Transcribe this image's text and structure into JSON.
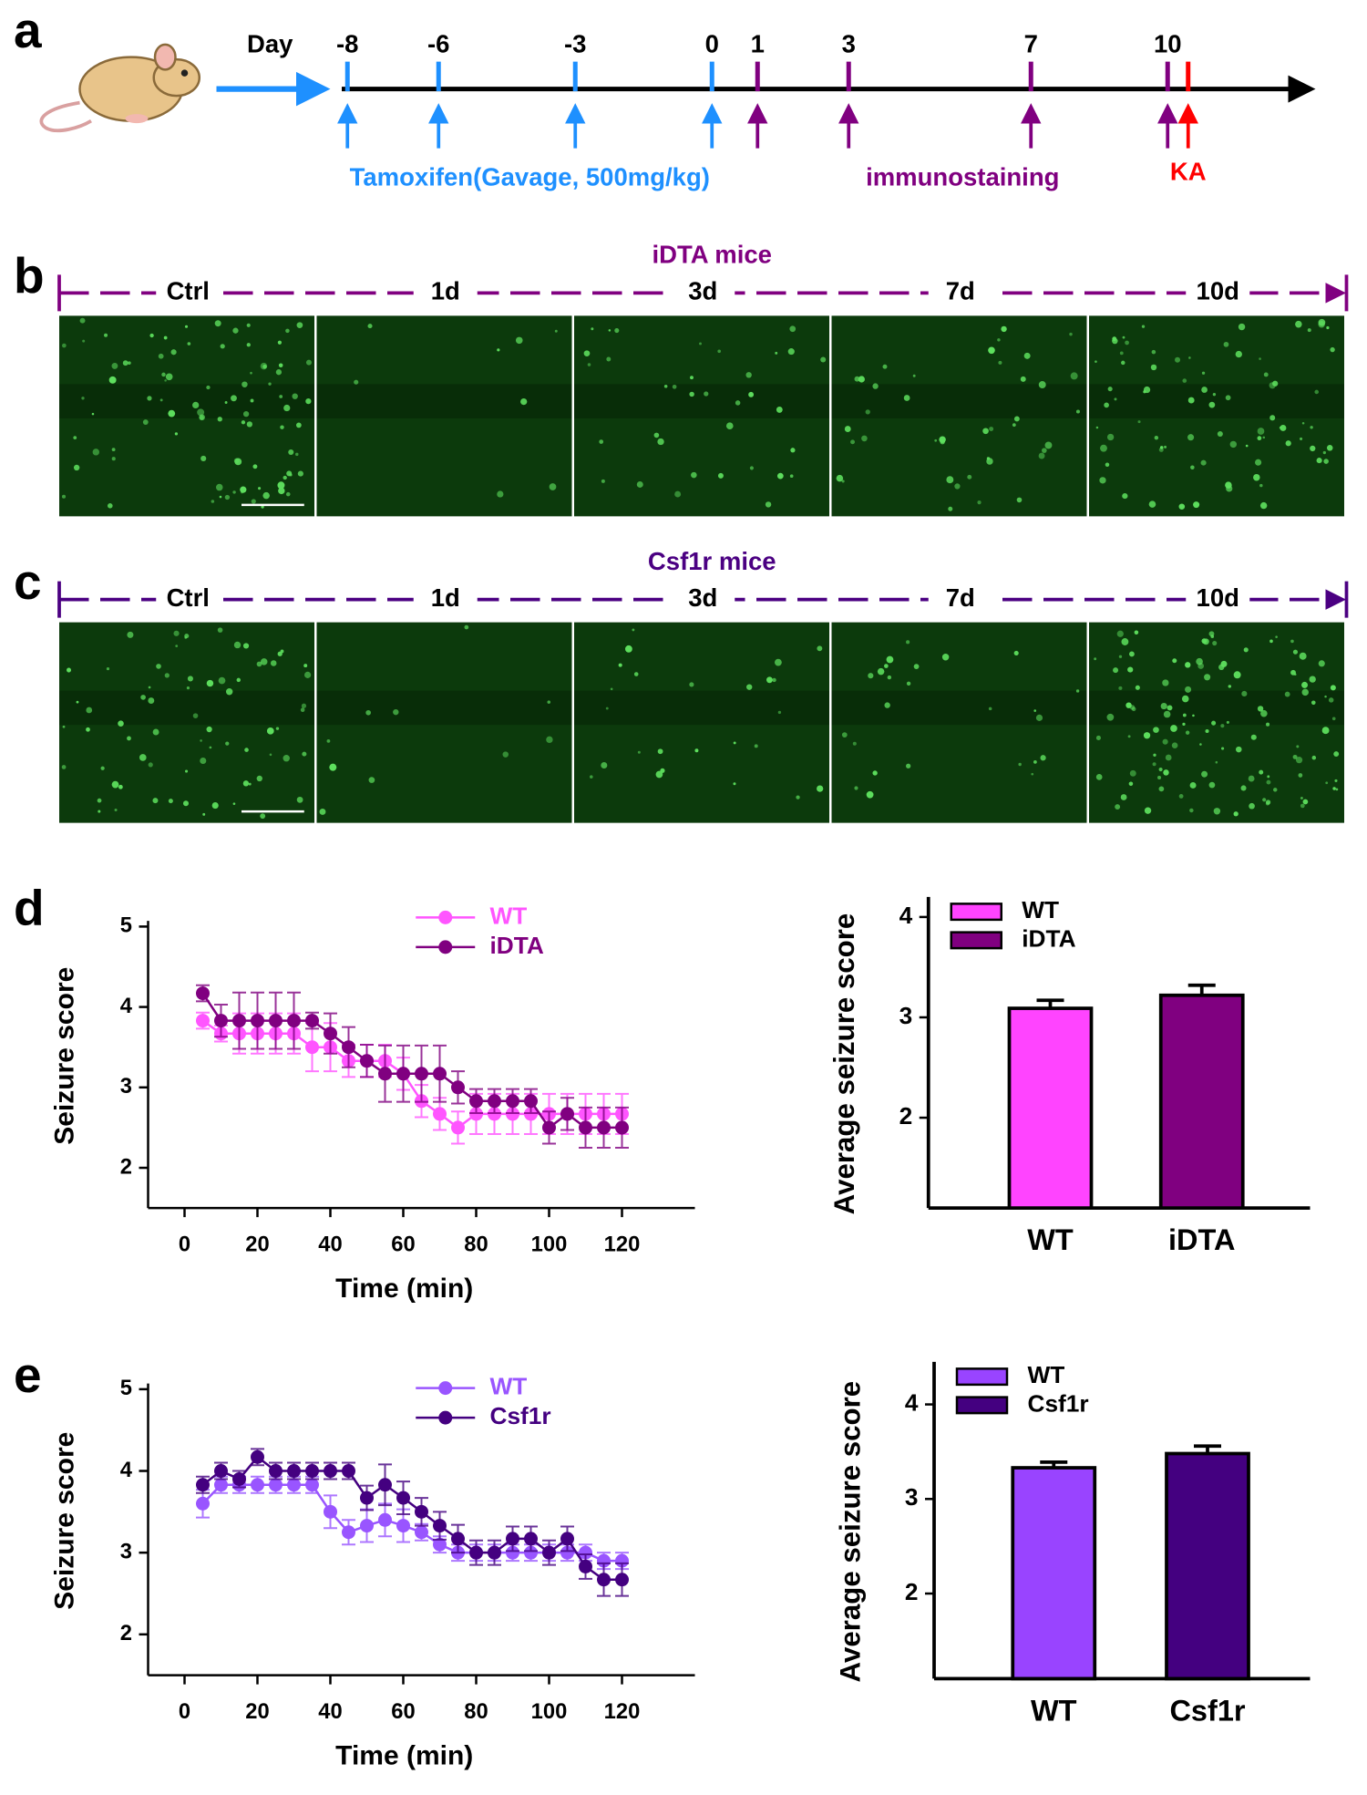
{
  "panel_labels": [
    "a",
    "b",
    "c",
    "d",
    "e"
  ],
  "timeline": {
    "day_label": "Day",
    "groups": [
      {
        "label": "Tamoxifen(Gavage, 500mg/kg)",
        "color": "#1e90ff",
        "days": [
          -8,
          -6,
          -3,
          0
        ]
      },
      {
        "label": "immunostaining",
        "color": "#800080",
        "days": [
          1,
          3,
          7,
          10
        ]
      }
    ],
    "event": {
      "label": "KA",
      "color": "#ff0000"
    }
  },
  "images": [
    {
      "title": "iDTA mice",
      "color": "#800080",
      "timepoints": [
        "Ctrl",
        "1d",
        "3d",
        "7d",
        "10d"
      ]
    },
    {
      "title": "Csf1r mice",
      "color": "#4b0082",
      "timepoints": [
        "Ctrl",
        "1d",
        "3d",
        "7d",
        "10d"
      ]
    }
  ],
  "chart_data": [
    {
      "type": "line",
      "xlabel": "Time (min)",
      "ylabel": "Seizure score",
      "x": [
        5,
        10,
        15,
        20,
        25,
        30,
        35,
        40,
        45,
        50,
        55,
        60,
        65,
        70,
        75,
        80,
        85,
        90,
        95,
        100,
        105,
        110,
        115,
        120
      ],
      "xlim": [
        -10,
        140
      ],
      "xticks": [
        0,
        20,
        40,
        60,
        80,
        100,
        120
      ],
      "ylim": [
        1.5,
        5
      ],
      "yticks": [
        2,
        3,
        4,
        5
      ],
      "series": [
        {
          "name": "WT",
          "color": "#ff55ff",
          "values": [
            3.83,
            3.67,
            3.67,
            3.67,
            3.67,
            3.67,
            3.5,
            3.5,
            3.33,
            3.33,
            3.33,
            3.17,
            2.83,
            2.67,
            2.5,
            2.67,
            2.67,
            2.67,
            2.67,
            2.67,
            2.67,
            2.67,
            2.67,
            2.67
          ],
          "errors": [
            0.1,
            0.1,
            0.25,
            0.25,
            0.25,
            0.25,
            0.3,
            0.3,
            0.2,
            0.2,
            0.2,
            0.2,
            0.2,
            0.2,
            0.2,
            0.25,
            0.25,
            0.25,
            0.25,
            0.25,
            0.25,
            0.25,
            0.25,
            0.25
          ]
        },
        {
          "name": "iDTA",
          "color": "#800080",
          "values": [
            4.17,
            3.83,
            3.83,
            3.83,
            3.83,
            3.83,
            3.83,
            3.67,
            3.5,
            3.33,
            3.17,
            3.17,
            3.17,
            3.17,
            3.0,
            2.83,
            2.83,
            2.83,
            2.83,
            2.5,
            2.67,
            2.5,
            2.5,
            2.5
          ],
          "errors": [
            0.1,
            0.2,
            0.35,
            0.35,
            0.35,
            0.35,
            0.1,
            0.25,
            0.25,
            0.2,
            0.35,
            0.35,
            0.35,
            0.35,
            0.2,
            0.15,
            0.15,
            0.15,
            0.15,
            0.2,
            0.2,
            0.25,
            0.25,
            0.25
          ]
        }
      ]
    },
    {
      "type": "bar",
      "ylabel": "Average seizure score",
      "categories": [
        "WT",
        "iDTA"
      ],
      "values": [
        3.09,
        3.22
      ],
      "errors": [
        0.08,
        0.1
      ],
      "colors": [
        "#ff44ff",
        "#800080"
      ],
      "ylim": [
        1.1,
        4.2
      ],
      "yticks": [
        2,
        3,
        4
      ]
    },
    {
      "type": "line",
      "xlabel": "Time (min)",
      "ylabel": "Seizure score",
      "x": [
        5,
        10,
        15,
        20,
        25,
        30,
        35,
        40,
        45,
        50,
        55,
        60,
        65,
        70,
        75,
        80,
        85,
        90,
        95,
        100,
        105,
        110,
        115,
        120
      ],
      "xlim": [
        -10,
        140
      ],
      "xticks": [
        0,
        20,
        40,
        60,
        80,
        100,
        120
      ],
      "ylim": [
        1.5,
        5
      ],
      "yticks": [
        2,
        3,
        4,
        5
      ],
      "series": [
        {
          "name": "WT",
          "color": "#9955ff",
          "values": [
            3.6,
            3.83,
            3.83,
            3.83,
            3.83,
            3.83,
            3.83,
            3.5,
            3.25,
            3.33,
            3.4,
            3.33,
            3.25,
            3.1,
            3.0,
            3.0,
            3.0,
            3.0,
            3.0,
            3.0,
            3.0,
            3.0,
            2.9,
            2.9
          ],
          "errors": [
            0.17,
            0.1,
            0.1,
            0.1,
            0.1,
            0.1,
            0.1,
            0.2,
            0.15,
            0.2,
            0.2,
            0.2,
            0.1,
            0.1,
            0.1,
            0.1,
            0.1,
            0.1,
            0.1,
            0.1,
            0.1,
            0.1,
            0.1,
            0.1
          ]
        },
        {
          "name": "Csf1r",
          "color": "#440080",
          "values": [
            3.83,
            4.0,
            3.9,
            4.17,
            4.0,
            4.0,
            4.0,
            4.0,
            4.0,
            3.67,
            3.83,
            3.67,
            3.5,
            3.33,
            3.17,
            3.0,
            3.0,
            3.17,
            3.17,
            3.0,
            3.17,
            2.83,
            2.67,
            2.67
          ],
          "errors": [
            0.1,
            0.1,
            0.1,
            0.1,
            0.1,
            0.1,
            0.1,
            0.1,
            0.1,
            0.15,
            0.25,
            0.2,
            0.17,
            0.17,
            0.17,
            0.15,
            0.15,
            0.15,
            0.15,
            0.15,
            0.15,
            0.15,
            0.2,
            0.2
          ]
        }
      ]
    },
    {
      "type": "bar",
      "ylabel": "Average seizure score",
      "categories": [
        "WT",
        "Csf1r"
      ],
      "values": [
        3.33,
        3.48
      ],
      "errors": [
        0.06,
        0.08
      ],
      "colors": [
        "#9944ff",
        "#440080"
      ],
      "ylim": [
        1.1,
        4.45
      ],
      "yticks": [
        2,
        3,
        4
      ]
    }
  ]
}
